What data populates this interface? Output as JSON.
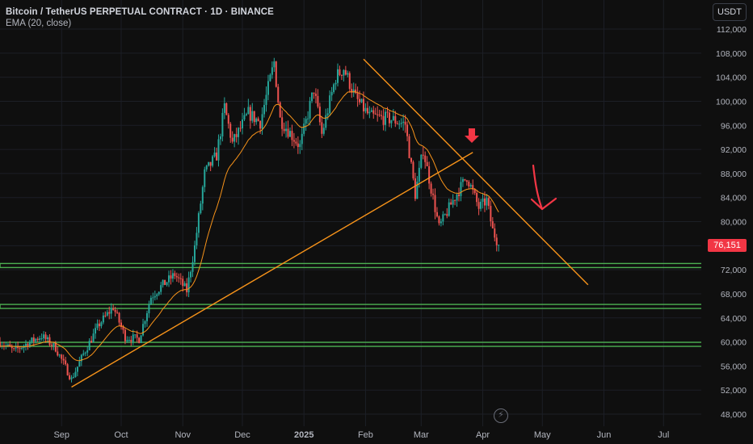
{
  "header": {
    "title": "Bitcoin / TetherUS PERPETUAL CONTRACT · 1D · BINANCE",
    "indicator": "EMA (20, close)"
  },
  "toolbar": {
    "currency": "USDT"
  },
  "last_price": "76,151",
  "colors": {
    "background": "#0f0f0f",
    "up": "#26a69a",
    "down": "#ef5350",
    "trendline": "#f7931a",
    "ema": "#f7931a",
    "support": "#4caf50",
    "arrow": "#f23645"
  },
  "icons": [
    "down-arrow-icon",
    "curved-arrow-icon",
    "lightning-icon"
  ],
  "chart_data": {
    "type": "candlestick",
    "title": "Bitcoin / TetherUS PERPETUAL CONTRACT · 1D · BINANCE",
    "ylim": [
      46000,
      114500
    ],
    "y_ticks": [
      112000,
      108000,
      104000,
      100000,
      96000,
      92000,
      88000,
      84000,
      80000,
      76000,
      72000,
      68000,
      64000,
      60000,
      56000,
      52000,
      48000
    ],
    "y_tick_labels": [
      "112,000",
      "108,000",
      "104,000",
      "100,000",
      "96,000",
      "92,000",
      "88,000",
      "84,000",
      "80,000",
      "76,000",
      "72,000",
      "68,000",
      "64,000",
      "60,000",
      "56,000",
      "52,000",
      "48,000"
    ],
    "x_ticks": [
      {
        "label": "Sep",
        "date": "2024-09-01"
      },
      {
        "label": "Oct",
        "date": "2024-10-01"
      },
      {
        "label": "Nov",
        "date": "2024-11-01"
      },
      {
        "label": "Dec",
        "date": "2024-12-01"
      },
      {
        "label": "2025",
        "date": "2025-01-01"
      },
      {
        "label": "Feb",
        "date": "2025-02-01"
      },
      {
        "label": "Mar",
        "date": "2025-03-01"
      },
      {
        "label": "Apr",
        "date": "2025-04-01"
      },
      {
        "label": "May",
        "date": "2025-05-01"
      },
      {
        "label": "Jun",
        "date": "2025-06-01"
      },
      {
        "label": "Jul",
        "date": "2025-07-01"
      }
    ],
    "xlim": [
      "2024-08-01",
      "2025-07-20"
    ],
    "price_path": [
      [
        "2024-08-01",
        60000
      ],
      [
        "2024-08-08",
        58500
      ],
      [
        "2024-08-15",
        59800
      ],
      [
        "2024-08-22",
        61000
      ],
      [
        "2024-08-29",
        59000
      ],
      [
        "2024-09-06",
        53800
      ],
      [
        "2024-09-12",
        58000
      ],
      [
        "2024-09-20",
        63000
      ],
      [
        "2024-09-27",
        65800
      ],
      [
        "2024-10-03",
        60800
      ],
      [
        "2024-10-10",
        60500
      ],
      [
        "2024-10-16",
        67500
      ],
      [
        "2024-10-21",
        69200
      ],
      [
        "2024-10-28",
        71200
      ],
      [
        "2024-11-03",
        68500
      ],
      [
        "2024-11-07",
        75800
      ],
      [
        "2024-11-12",
        88000
      ],
      [
        "2024-11-18",
        91000
      ],
      [
        "2024-11-22",
        99000
      ],
      [
        "2024-11-26",
        93000
      ],
      [
        "2024-12-04",
        98000
      ],
      [
        "2024-12-10",
        96500
      ],
      [
        "2024-12-17",
        106500
      ],
      [
        "2024-12-20",
        97000
      ],
      [
        "2024-12-30",
        92500
      ],
      [
        "2025-01-06",
        102000
      ],
      [
        "2025-01-10",
        94500
      ],
      [
        "2025-01-17",
        104000
      ],
      [
        "2025-01-21",
        105500
      ],
      [
        "2025-01-27",
        100500
      ],
      [
        "2025-02-03",
        97500
      ],
      [
        "2025-02-14",
        97000
      ],
      [
        "2025-02-21",
        96200
      ],
      [
        "2025-02-26",
        84500
      ],
      [
        "2025-03-02",
        92000
      ],
      [
        "2025-03-10",
        79000
      ],
      [
        "2025-03-17",
        83500
      ],
      [
        "2025-03-24",
        87500
      ],
      [
        "2025-03-30",
        82300
      ],
      [
        "2025-04-03",
        83500
      ],
      [
        "2025-04-06",
        78500
      ],
      [
        "2025-04-09",
        76151
      ]
    ],
    "ema_period": 20,
    "trendlines": [
      {
        "from": [
          "2024-09-06",
          52500
        ],
        "to": [
          "2025-03-27",
          91500
        ]
      },
      {
        "from": [
          "2025-01-31",
          107000
        ],
        "to": [
          "2025-05-24",
          69500
        ]
      }
    ],
    "support_levels": [
      72700,
      65900,
      59600
    ],
    "last_price": 76151
  }
}
